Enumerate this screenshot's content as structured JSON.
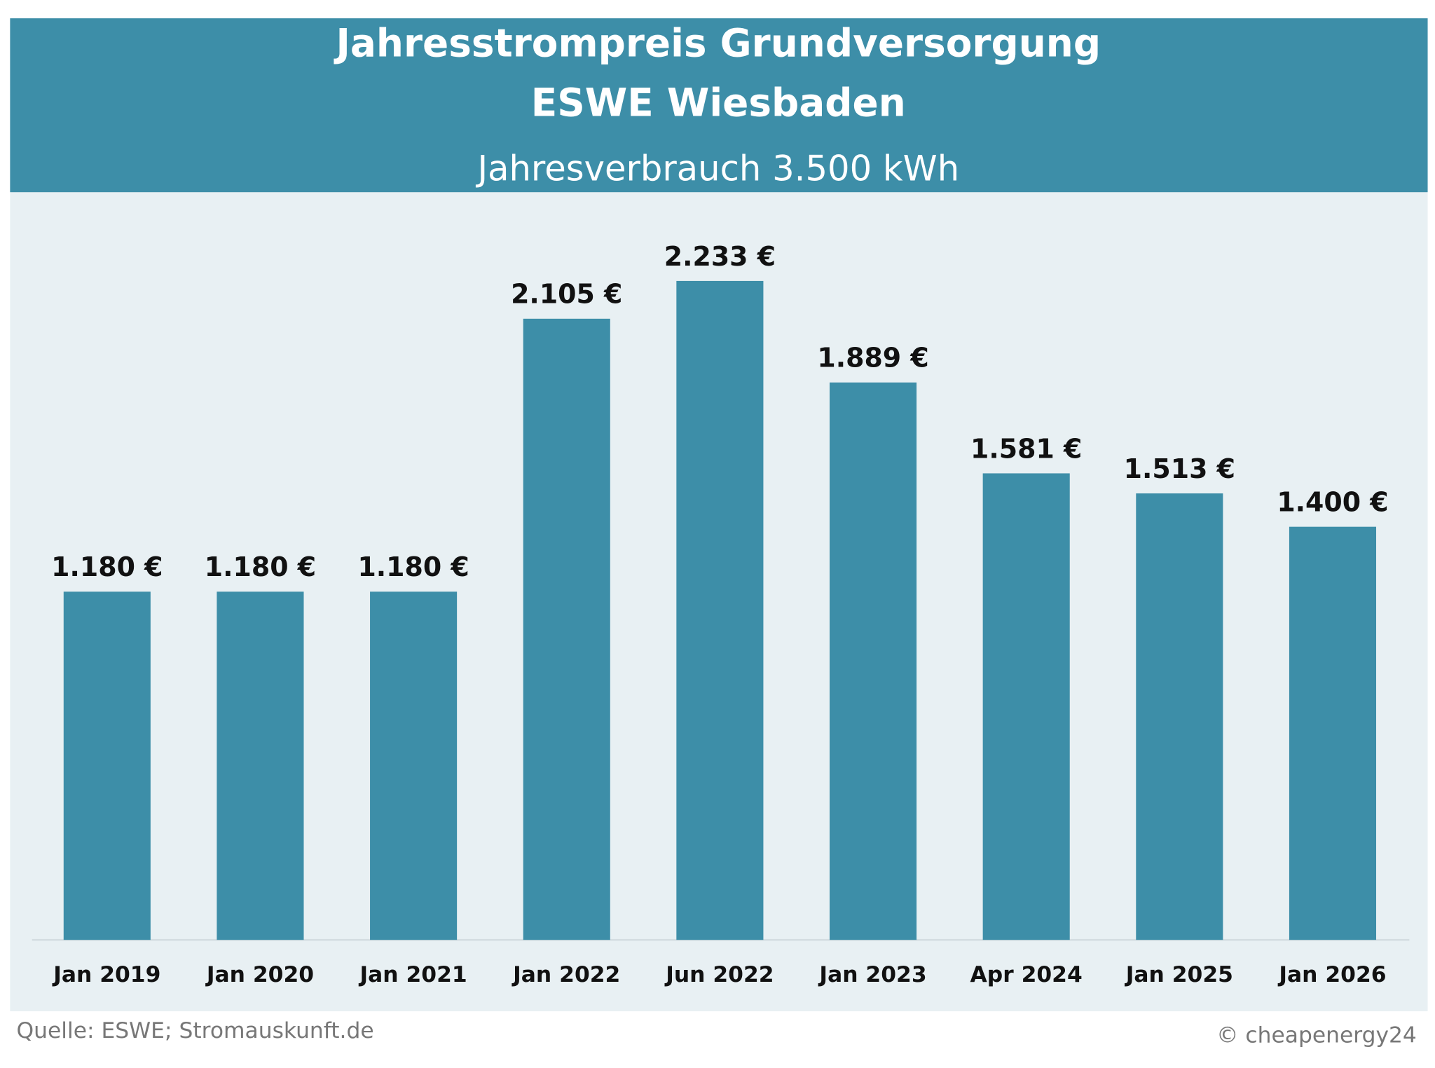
{
  "chart_data": {
    "type": "bar",
    "title": [
      "Jahresstrompreis Grundversorgung",
      "ESWE Wiesbaden"
    ],
    "subtitle": "Jahresverbrauch 3.500 kWh",
    "categories": [
      "Jan 2019",
      "Jan 2020",
      "Jan 2021",
      "Jan 2022",
      "Jun 2022",
      "Jan 2023",
      "Apr 2024",
      "Jan 2025",
      "Jan 2026"
    ],
    "values": [
      1180,
      1180,
      1180,
      2105,
      2233,
      1889,
      1581,
      1513,
      1400
    ],
    "value_labels": [
      "1.180 €",
      "1.180 €",
      "1.180 €",
      "2.105 €",
      "2.233 €",
      "1.889 €",
      "1.581 €",
      "1.513 €",
      "1.400 €"
    ],
    "color": "#3d8ea8",
    "source": "Quelle: ESWE; Stromauskunft.de",
    "credit": "© cheapenergy24"
  }
}
